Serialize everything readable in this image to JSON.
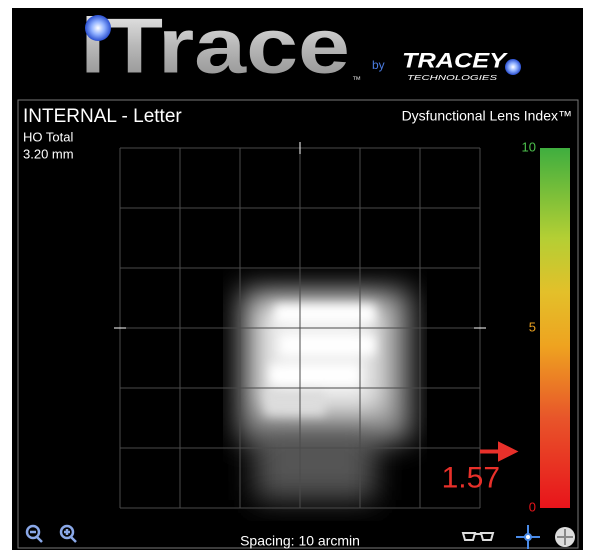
{
  "header": {
    "logo": "iTrace",
    "logo_tm": "™",
    "by": "by",
    "brand": "TRACEY",
    "brand_sub": "TECHNOLOGIES"
  },
  "panel": {
    "title": "INTERNAL - Letter",
    "subtitle": "HO Total",
    "pupil": "3.20 mm",
    "index_title": "Dysfunctional Lens Index™"
  },
  "scale": {
    "ticks": [
      10,
      5,
      0
    ],
    "value": 1.57
  },
  "footer": {
    "spacing": "Spacing:  10 arcmin"
  }
}
